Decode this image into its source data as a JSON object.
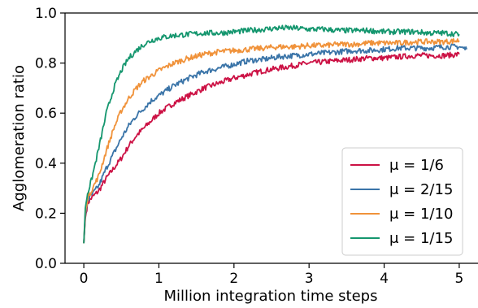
{
  "chart_data": {
    "type": "line",
    "xlabel": "Million integration time steps",
    "ylabel": "Agglomeration ratio",
    "xlim": [
      -0.25,
      5.25
    ],
    "ylim": [
      0.0,
      1.0
    ],
    "x_ticks": [
      "0",
      "1",
      "2",
      "3",
      "4",
      "5"
    ],
    "y_ticks": [
      "0.0",
      "0.2",
      "0.4",
      "0.6",
      "0.8",
      "1.0"
    ],
    "grid": false,
    "legend_position": "lower-right",
    "series": [
      {
        "name": "μ = 1/6",
        "color": "#cc1144",
        "points": [
          [
            0,
            0.08
          ],
          [
            0.02,
            0.18
          ],
          [
            0.05,
            0.24
          ],
          [
            0.1,
            0.26
          ],
          [
            0.2,
            0.29
          ],
          [
            0.3,
            0.34
          ],
          [
            0.4,
            0.38
          ],
          [
            0.5,
            0.42
          ],
          [
            0.6,
            0.47
          ],
          [
            0.7,
            0.51
          ],
          [
            0.8,
            0.54
          ],
          [
            0.9,
            0.57
          ],
          [
            1.0,
            0.6
          ],
          [
            1.2,
            0.64
          ],
          [
            1.4,
            0.67
          ],
          [
            1.6,
            0.7
          ],
          [
            1.8,
            0.72
          ],
          [
            2.0,
            0.74
          ],
          [
            2.2,
            0.755
          ],
          [
            2.4,
            0.77
          ],
          [
            2.6,
            0.78
          ],
          [
            2.8,
            0.79
          ],
          [
            3.0,
            0.8
          ],
          [
            3.2,
            0.805
          ],
          [
            3.4,
            0.81
          ],
          [
            3.6,
            0.815
          ],
          [
            3.8,
            0.82
          ],
          [
            4.0,
            0.82
          ],
          [
            4.2,
            0.825
          ],
          [
            4.4,
            0.83
          ],
          [
            4.6,
            0.83
          ],
          [
            4.8,
            0.83
          ],
          [
            5.0,
            0.835
          ]
        ]
      },
      {
        "name": "μ = 2/15",
        "color": "#3a74a8",
        "points": [
          [
            0,
            0.08
          ],
          [
            0.02,
            0.19
          ],
          [
            0.05,
            0.25
          ],
          [
            0.1,
            0.27
          ],
          [
            0.2,
            0.31
          ],
          [
            0.3,
            0.38
          ],
          [
            0.4,
            0.44
          ],
          [
            0.5,
            0.5
          ],
          [
            0.6,
            0.55
          ],
          [
            0.7,
            0.59
          ],
          [
            0.8,
            0.62
          ],
          [
            0.9,
            0.65
          ],
          [
            1.0,
            0.67
          ],
          [
            1.2,
            0.71
          ],
          [
            1.4,
            0.74
          ],
          [
            1.6,
            0.765
          ],
          [
            1.8,
            0.78
          ],
          [
            2.0,
            0.795
          ],
          [
            2.2,
            0.81
          ],
          [
            2.4,
            0.815
          ],
          [
            2.6,
            0.825
          ],
          [
            2.8,
            0.83
          ],
          [
            3.0,
            0.835
          ],
          [
            3.2,
            0.84
          ],
          [
            3.4,
            0.845
          ],
          [
            3.6,
            0.85
          ],
          [
            3.8,
            0.85
          ],
          [
            4.0,
            0.855
          ],
          [
            4.2,
            0.86
          ],
          [
            4.4,
            0.86
          ],
          [
            4.6,
            0.86
          ],
          [
            4.8,
            0.865
          ],
          [
            5.0,
            0.865
          ],
          [
            5.1,
            0.855
          ]
        ]
      },
      {
        "name": "μ = 1/10",
        "color": "#f0923a",
        "points": [
          [
            0,
            0.08
          ],
          [
            0.02,
            0.2
          ],
          [
            0.05,
            0.26
          ],
          [
            0.1,
            0.29
          ],
          [
            0.2,
            0.35
          ],
          [
            0.3,
            0.45
          ],
          [
            0.4,
            0.54
          ],
          [
            0.5,
            0.61
          ],
          [
            0.6,
            0.66
          ],
          [
            0.7,
            0.7
          ],
          [
            0.8,
            0.73
          ],
          [
            0.9,
            0.75
          ],
          [
            1.0,
            0.77
          ],
          [
            1.2,
            0.8
          ],
          [
            1.4,
            0.82
          ],
          [
            1.6,
            0.835
          ],
          [
            1.8,
            0.845
          ],
          [
            2.0,
            0.85
          ],
          [
            2.2,
            0.855
          ],
          [
            2.4,
            0.86
          ],
          [
            2.6,
            0.865
          ],
          [
            2.8,
            0.865
          ],
          [
            3.0,
            0.87
          ],
          [
            3.2,
            0.87
          ],
          [
            3.4,
            0.875
          ],
          [
            3.6,
            0.875
          ],
          [
            3.8,
            0.88
          ],
          [
            4.0,
            0.88
          ],
          [
            4.2,
            0.88
          ],
          [
            4.4,
            0.885
          ],
          [
            4.6,
            0.885
          ],
          [
            4.8,
            0.885
          ],
          [
            5.0,
            0.89
          ]
        ]
      },
      {
        "name": "μ = 1/15",
        "color": "#14966e",
        "points": [
          [
            0,
            0.08
          ],
          [
            0.02,
            0.22
          ],
          [
            0.05,
            0.28
          ],
          [
            0.1,
            0.33
          ],
          [
            0.2,
            0.46
          ],
          [
            0.3,
            0.6
          ],
          [
            0.4,
            0.7
          ],
          [
            0.5,
            0.77
          ],
          [
            0.6,
            0.82
          ],
          [
            0.7,
            0.85
          ],
          [
            0.8,
            0.875
          ],
          [
            0.9,
            0.89
          ],
          [
            1.0,
            0.9
          ],
          [
            1.2,
            0.91
          ],
          [
            1.4,
            0.915
          ],
          [
            1.6,
            0.92
          ],
          [
            1.8,
            0.92
          ],
          [
            2.0,
            0.925
          ],
          [
            2.2,
            0.93
          ],
          [
            2.4,
            0.935
          ],
          [
            2.6,
            0.94
          ],
          [
            2.8,
            0.94
          ],
          [
            3.0,
            0.935
          ],
          [
            3.2,
            0.935
          ],
          [
            3.4,
            0.93
          ],
          [
            3.6,
            0.93
          ],
          [
            3.8,
            0.93
          ],
          [
            4.0,
            0.925
          ],
          [
            4.2,
            0.925
          ],
          [
            4.4,
            0.925
          ],
          [
            4.6,
            0.92
          ],
          [
            4.8,
            0.92
          ],
          [
            5.0,
            0.915
          ]
        ]
      }
    ]
  }
}
